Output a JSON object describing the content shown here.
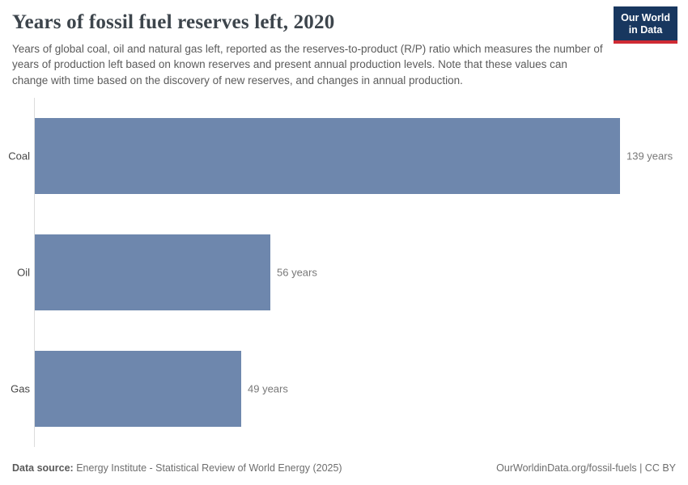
{
  "header": {
    "title": "Years of fossil fuel reserves left, 2020",
    "subtitle": "Years of global coal, oil and natural gas left, reported as the reserves-to-product (R/P) ratio which measures the number of years of production left based on known reserves and present annual production levels. Note that these values can change with time based on the discovery of new reserves, and changes in annual production.",
    "logo": {
      "line1": "Our World",
      "line2": "in Data",
      "bg_color": "#18375f",
      "accent_color": "#cf2b34"
    }
  },
  "chart_data": {
    "type": "bar",
    "orientation": "horizontal",
    "title": "Years of fossil fuel reserves left, 2020",
    "xlabel": "",
    "ylabel": "",
    "categories": [
      "Coal",
      "Oil",
      "Gas"
    ],
    "values": [
      139,
      56,
      49
    ],
    "value_labels": [
      "139 years",
      "56 years",
      "49 years"
    ],
    "unit": "years",
    "xlim": [
      0,
      139
    ],
    "grid": false,
    "legend": false,
    "bar_color": "#6e87ad",
    "axis_line_color": "#dcdcdc"
  },
  "footer": {
    "source_label": "Data source:",
    "source_text": " Energy Institute - Statistical Review of World Energy (2025)",
    "attribution": "OurWorldinData.org/fossil-fuels | CC BY"
  }
}
